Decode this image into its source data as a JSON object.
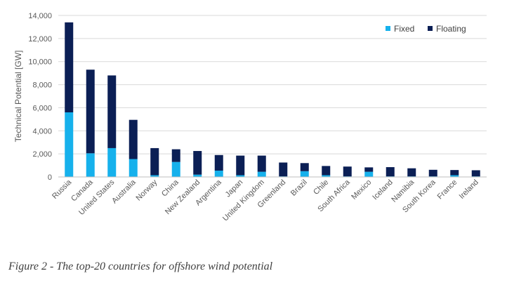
{
  "caption": "Figure 2 - The top-20 countries for offshore wind potential",
  "chart_data": {
    "type": "bar",
    "stacked": true,
    "categories": [
      "Russia",
      "Canada",
      "United States",
      "Australia",
      "Norway",
      "China",
      "New Zealand",
      "Argentina",
      "Japan",
      "United Kingdom",
      "Greenland",
      "Brazil",
      "Chile",
      "South Africa",
      "Mexico",
      "Iceland",
      "Namibia",
      "South Korea",
      "France",
      "Ireland"
    ],
    "series": [
      {
        "name": "Fixed",
        "color": "#16B1EC",
        "values": [
          5600,
          2050,
          2500,
          1550,
          150,
          1300,
          200,
          550,
          150,
          450,
          50,
          500,
          150,
          50,
          450,
          50,
          50,
          50,
          150,
          50
        ]
      },
      {
        "name": "Floating",
        "color": "#0B1F55",
        "values": [
          7800,
          7250,
          6300,
          3400,
          2350,
          1100,
          2050,
          1350,
          1700,
          1400,
          1200,
          700,
          800,
          850,
          380,
          800,
          700,
          570,
          450,
          530
        ]
      }
    ],
    "xlabel": "",
    "ylabel": "Technical Potential [GW]",
    "ylim": [
      0,
      14000
    ],
    "yticks": [
      0,
      2000,
      4000,
      6000,
      8000,
      10000,
      12000,
      14000
    ],
    "ytick_labels": [
      "0",
      "2,000",
      "4,000",
      "6,000",
      "8,000",
      "10,000",
      "12,000",
      "14,000"
    ],
    "grid": true,
    "legend": "top-right"
  }
}
